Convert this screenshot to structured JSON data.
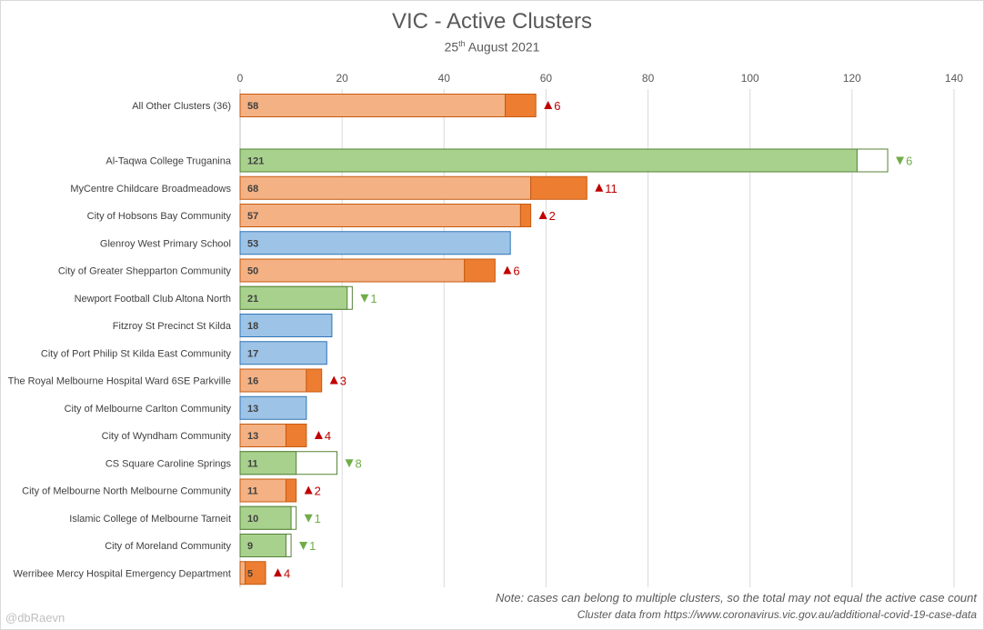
{
  "chart_data": {
    "type": "bar",
    "orientation": "horizontal",
    "stacked": true,
    "title": "VIC - Active Clusters",
    "subtitle": {
      "day": "25",
      "suffix": "th",
      "rest": " August 2021"
    },
    "note": "Note: cases can belong to multiple clusters, so the total may not equal the active case count",
    "source": "Cluster data from https://www.coronavirus.vic.gov.au/additional-covid-19-case-data",
    "credit": "@dbRaevn",
    "xlim": [
      0,
      140
    ],
    "xticks": [
      0,
      20,
      40,
      60,
      80,
      100,
      120,
      140
    ],
    "grid": true,
    "legend": "none",
    "colors": {
      "increase_base": "#f4b183",
      "increase_delta": "#ed7d31",
      "increase_border": "#c55a11",
      "decrease_fill": "#a9d18e",
      "decrease_border": "#548235",
      "nochange_fill": "#9dc3e6",
      "nochange_border": "#2e75b6",
      "up_text": "#c00000",
      "down_text": "#70ad47"
    },
    "clusters": [
      {
        "name": "All Other Clusters (36)",
        "value": 58,
        "change": 6,
        "direction": "up"
      },
      {
        "name": "Al-Taqwa College Truganina",
        "value": 121,
        "change": 6,
        "direction": "down"
      },
      {
        "name": "MyCentre Childcare Broadmeadows",
        "value": 68,
        "change": 11,
        "direction": "up"
      },
      {
        "name": "City of Hobsons Bay Community",
        "value": 57,
        "change": 2,
        "direction": "up"
      },
      {
        "name": "Glenroy West Primary School",
        "value": 53,
        "change": 0,
        "direction": "none"
      },
      {
        "name": "City of Greater Shepparton Community",
        "value": 50,
        "change": 6,
        "direction": "up"
      },
      {
        "name": "Newport Football Club Altona North",
        "value": 21,
        "change": 1,
        "direction": "down"
      },
      {
        "name": "Fitzroy St Precinct St Kilda",
        "value": 18,
        "change": 0,
        "direction": "none"
      },
      {
        "name": "City of Port Philip St Kilda East Community",
        "value": 17,
        "change": 0,
        "direction": "none"
      },
      {
        "name": "The Royal Melbourne Hospital Ward 6SE Parkville",
        "value": 16,
        "change": 3,
        "direction": "up"
      },
      {
        "name": "City of Melbourne Carlton Community",
        "value": 13,
        "change": 0,
        "direction": "none"
      },
      {
        "name": "City of Wyndham Community",
        "value": 13,
        "change": 4,
        "direction": "up"
      },
      {
        "name": "CS Square Caroline Springs",
        "value": 11,
        "change": 8,
        "direction": "down"
      },
      {
        "name": "City of Melbourne North Melbourne Community",
        "value": 11,
        "change": 2,
        "direction": "up"
      },
      {
        "name": "Islamic College of Melbourne Tarneit",
        "value": 10,
        "change": 1,
        "direction": "down"
      },
      {
        "name": "City of Moreland Community",
        "value": 9,
        "change": 1,
        "direction": "down"
      },
      {
        "name": "Werribee Mercy Hospital Emergency Department",
        "value": 5,
        "change": 4,
        "direction": "up"
      }
    ]
  }
}
